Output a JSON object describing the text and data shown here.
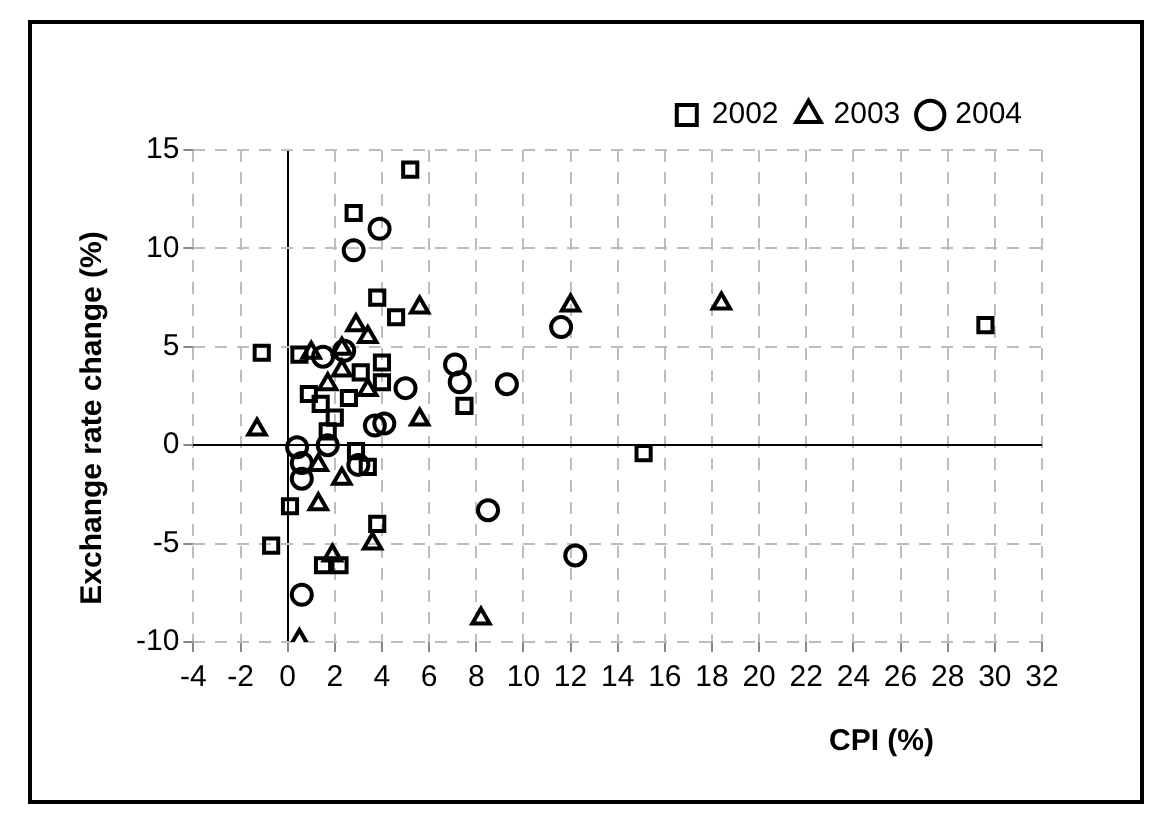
{
  "chart_data": {
    "type": "scatter",
    "xlabel": "CPI (%)",
    "ylabel": "Exchange rate change (%)",
    "xlim": [
      -4,
      32
    ],
    "xticks": [
      -4,
      -2,
      0,
      2,
      4,
      6,
      8,
      10,
      12,
      14,
      16,
      18,
      20,
      22,
      24,
      26,
      28,
      30,
      32
    ],
    "ylim": [
      -10,
      15
    ],
    "yticks": [
      -10,
      -5,
      0,
      5,
      10,
      15
    ],
    "grid": true,
    "legend": "top right",
    "series": [
      {
        "name": "2002",
        "color": "#000000",
        "marker": "square",
        "x": [
          5.2,
          2.8,
          3.8,
          4.6,
          -1.1,
          0.5,
          4.0,
          3.1,
          4.0,
          0.9,
          7.5,
          1.4,
          2.0,
          2.6,
          1.7,
          2.9,
          3.4,
          0.1,
          3.8,
          -0.7,
          1.5,
          2.2,
          29.6,
          15.1
        ],
        "values": [
          14,
          11.8,
          7.5,
          6.5,
          4.7,
          4.6,
          4.2,
          3.7,
          3.2,
          2.6,
          2.0,
          2.1,
          1.4,
          2.4,
          0.7,
          -0.3,
          -1.1,
          -3.1,
          -4.0,
          -5.1,
          -6.1,
          -6.1,
          6.1,
          -0.4
        ]
      },
      {
        "name": "2003",
        "color": "#000000",
        "marker": "triangle",
        "x": [
          5.6,
          2.9,
          3.4,
          1.0,
          2.3,
          5.6,
          -1.3,
          1.7,
          3.4,
          2.3,
          1.3,
          2.3,
          1.3,
          3.6,
          1.9,
          0.5,
          8.2,
          12.0,
          18.4
        ],
        "values": [
          7.0,
          6.1,
          5.5,
          4.7,
          4.9,
          1.3,
          0.8,
          3.1,
          2.8,
          3.8,
          -1.0,
          -1.7,
          -3.0,
          -5.0,
          -5.6,
          -9.9,
          -8.8,
          7.1,
          7.2
        ]
      },
      {
        "name": "2004",
        "color": "#000000",
        "marker": "circle",
        "x": [
          3.9,
          2.8,
          1.5,
          2.4,
          7.1,
          7.3,
          9.3,
          5.0,
          3.7,
          4.1,
          0.4,
          0.6,
          0.6,
          3.0,
          1.7,
          0.6,
          8.5,
          11.6,
          12.2
        ],
        "values": [
          11.0,
          9.9,
          4.5,
          4.8,
          4.1,
          3.2,
          3.1,
          2.9,
          1.0,
          1.1,
          -0.1,
          -0.9,
          -1.7,
          -1.0,
          0.0,
          -7.6,
          -3.3,
          6.0,
          -5.6
        ]
      }
    ]
  }
}
